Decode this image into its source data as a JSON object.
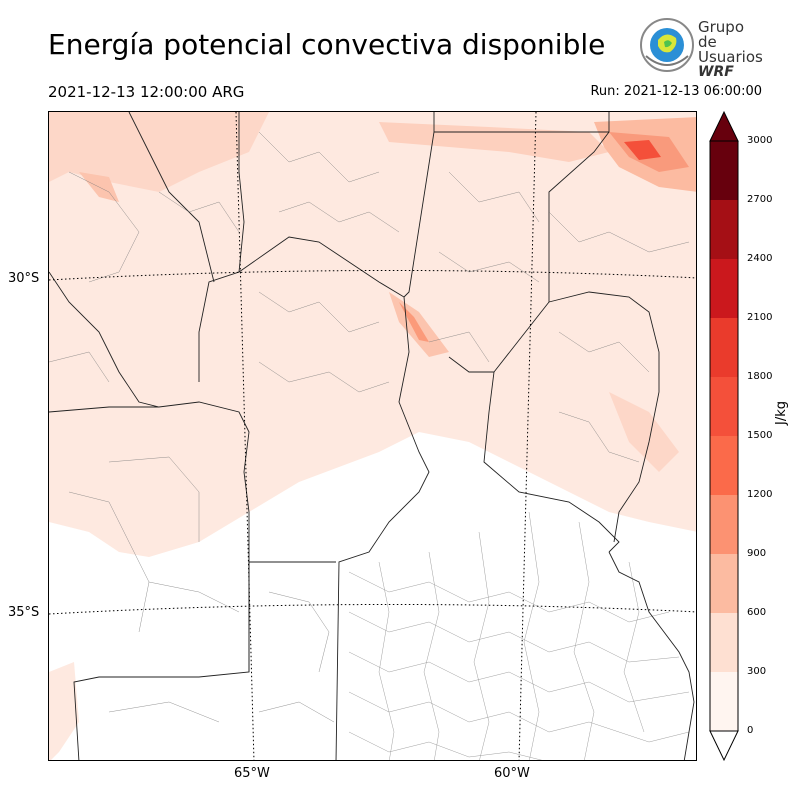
{
  "header": {
    "title": "Energía potencial convectiva disponible",
    "valid_time": "2021-12-13 12:00:00 ARG",
    "run_time": "Run: 2021-12-13 06:00:00"
  },
  "logo": {
    "line1": "Grupo de",
    "line2": "Usuarios",
    "line3": "WRF"
  },
  "map": {
    "lat_labels": [
      "30°S",
      "35°S"
    ],
    "lon_labels": [
      "65°W",
      "60°W"
    ]
  },
  "colorbar": {
    "unit": "J/kg",
    "ticks": [
      "0",
      "300",
      "600",
      "900",
      "1200",
      "1500",
      "1800",
      "2100",
      "2400",
      "2700",
      "3000"
    ],
    "colors": [
      "#fff5f0",
      "#fee0d2",
      "#fcbba1",
      "#fc9272",
      "#fb6a4a",
      "#f4503a",
      "#ea3b2c",
      "#cb181d",
      "#a50f15",
      "#67000d"
    ]
  }
}
